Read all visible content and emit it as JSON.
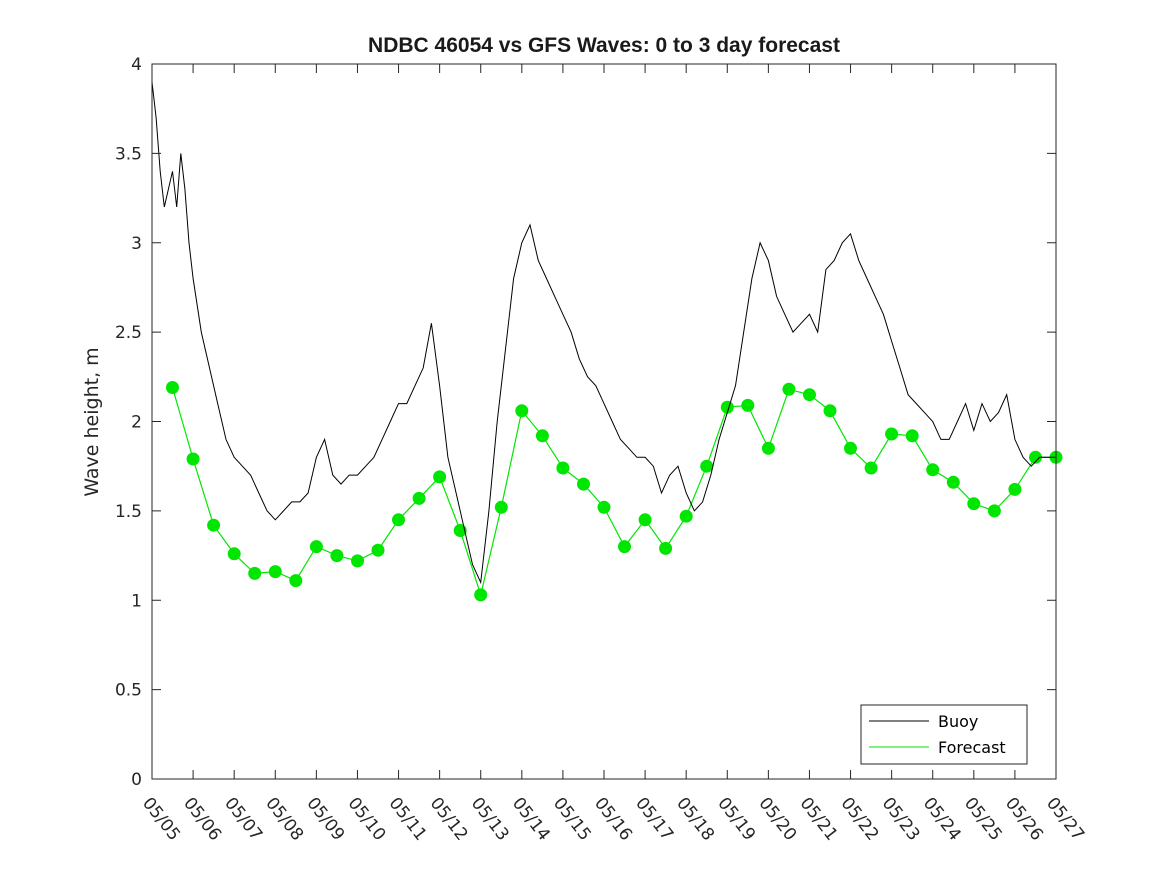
{
  "chart_data": {
    "type": "line",
    "title": "NDBC 46054 vs GFS Waves: 0 to 3 day forecast",
    "xlabel": "",
    "ylabel": "Wave height, m",
    "x_tick_labels": [
      "05/05",
      "05/06",
      "05/07",
      "05/08",
      "05/09",
      "05/10",
      "05/11",
      "05/12",
      "05/13",
      "05/14",
      "05/15",
      "05/16",
      "05/17",
      "05/18",
      "05/19",
      "05/20",
      "05/21",
      "05/22",
      "05/23",
      "05/24",
      "05/25",
      "05/26",
      "05/27"
    ],
    "y_tick_labels": [
      "0",
      "0.5",
      "1",
      "1.5",
      "2",
      "2.5",
      "3",
      "3.5",
      "4"
    ],
    "xlim_days": [
      0,
      22
    ],
    "ylim": [
      0,
      4
    ],
    "grid": false,
    "legend_position": "bottom-right",
    "colors": {
      "buoy": "#000000",
      "forecast": "#00e600"
    },
    "series": [
      {
        "name": "Buoy",
        "x_days": [
          0,
          0.1,
          0.2,
          0.3,
          0.4,
          0.5,
          0.6,
          0.7,
          0.8,
          0.9,
          1.0,
          1.2,
          1.4,
          1.6,
          1.8,
          2.0,
          2.2,
          2.4,
          2.6,
          2.8,
          3.0,
          3.2,
          3.4,
          3.6,
          3.8,
          4.0,
          4.2,
          4.4,
          4.6,
          4.8,
          5.0,
          5.2,
          5.4,
          5.6,
          5.8,
          6.0,
          6.2,
          6.4,
          6.6,
          6.8,
          7.0,
          7.2,
          7.4,
          7.6,
          7.8,
          8.0,
          8.2,
          8.4,
          8.6,
          8.8,
          9.0,
          9.2,
          9.4,
          9.6,
          9.8,
          10.0,
          10.2,
          10.4,
          10.6,
          10.8,
          11.0,
          11.2,
          11.4,
          11.6,
          11.8,
          12.0,
          12.2,
          12.4,
          12.6,
          12.8,
          13.0,
          13.2,
          13.4,
          13.6,
          13.8,
          14.0,
          14.2,
          14.4,
          14.6,
          14.8,
          15.0,
          15.2,
          15.4,
          15.6,
          15.8,
          16.0,
          16.2,
          16.4,
          16.6,
          16.8,
          17.0,
          17.2,
          17.4,
          17.6,
          17.8,
          18.0,
          18.2,
          18.4,
          18.6,
          18.8,
          19.0,
          19.2,
          19.4,
          19.6,
          19.8,
          20.0,
          20.2,
          20.4,
          20.6,
          20.8,
          21.0,
          21.2,
          21.4,
          21.6,
          21.8,
          22.0
        ],
        "values": [
          3.9,
          3.7,
          3.4,
          3.2,
          3.3,
          3.4,
          3.2,
          3.5,
          3.3,
          3.0,
          2.8,
          2.5,
          2.3,
          2.1,
          1.9,
          1.8,
          1.75,
          1.7,
          1.6,
          1.5,
          1.45,
          1.5,
          1.55,
          1.55,
          1.6,
          1.8,
          1.9,
          1.7,
          1.65,
          1.7,
          1.7,
          1.75,
          1.8,
          1.9,
          2.0,
          2.1,
          2.1,
          2.2,
          2.3,
          2.55,
          2.2,
          1.8,
          1.6,
          1.4,
          1.2,
          1.1,
          1.5,
          2.0,
          2.4,
          2.8,
          3.0,
          3.1,
          2.9,
          2.8,
          2.7,
          2.6,
          2.5,
          2.35,
          2.25,
          2.2,
          2.1,
          2.0,
          1.9,
          1.85,
          1.8,
          1.8,
          1.75,
          1.6,
          1.7,
          1.75,
          1.6,
          1.5,
          1.55,
          1.7,
          1.9,
          2.05,
          2.2,
          2.5,
          2.8,
          3.0,
          2.9,
          2.7,
          2.6,
          2.5,
          2.55,
          2.6,
          2.5,
          2.85,
          2.9,
          3.0,
          3.05,
          2.9,
          2.8,
          2.7,
          2.6,
          2.45,
          2.3,
          2.15,
          2.1,
          2.05,
          2.0,
          1.9,
          1.9,
          2.0,
          2.1,
          1.95,
          2.1,
          2.0,
          2.05,
          2.15,
          1.9,
          1.8,
          1.75,
          1.8,
          1.8,
          1.8
        ]
      },
      {
        "name": "Forecast",
        "x_days": [
          0.5,
          1.0,
          1.5,
          2.0,
          2.5,
          3.0,
          3.5,
          4.0,
          4.5,
          5.0,
          5.5,
          6.0,
          6.5,
          7.0,
          7.5,
          8.0,
          8.5,
          9.0,
          9.5,
          10.0,
          10.5,
          11.0,
          11.5,
          12.0,
          12.5,
          13.0,
          13.5,
          14.0,
          14.5,
          15.0,
          15.5,
          16.0,
          16.5,
          17.0,
          17.5,
          18.0,
          18.5,
          19.0,
          19.5,
          20.0,
          20.5,
          21.0,
          21.5,
          22.0
        ],
        "values": [
          2.19,
          1.79,
          1.42,
          1.26,
          1.15,
          1.16,
          1.11,
          1.3,
          1.25,
          1.22,
          1.28,
          1.45,
          1.57,
          1.69,
          1.39,
          1.03,
          1.52,
          2.06,
          1.92,
          1.74,
          1.65,
          1.52,
          1.3,
          1.45,
          1.29,
          1.47,
          1.75,
          2.08,
          2.09,
          1.85,
          2.18,
          2.15,
          2.06,
          1.85,
          1.74,
          1.93,
          1.92,
          1.73,
          1.66,
          1.54,
          1.5,
          1.62,
          1.8,
          1.8
        ]
      }
    ],
    "legend": {
      "buoy_label": "Buoy",
      "forecast_label": "Forecast"
    }
  }
}
